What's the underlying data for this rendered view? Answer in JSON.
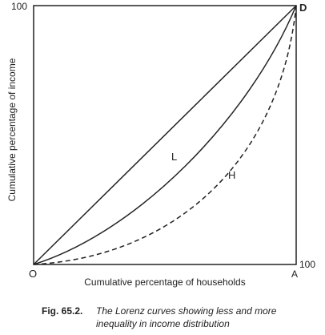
{
  "labels": {
    "top_y": "100",
    "corner_d": "D",
    "y_axis": "Cumulative percentage of income",
    "curve_l": "L",
    "curve_h": "H",
    "origin": "O",
    "corner_a": "A",
    "right_x": "100",
    "x_axis": "Cumulative percentage of households"
  },
  "caption": {
    "number": "Fig. 65.2.",
    "line1": "The Lorenz curves showing less and more",
    "line2": "inequality in income distribution"
  }
}
